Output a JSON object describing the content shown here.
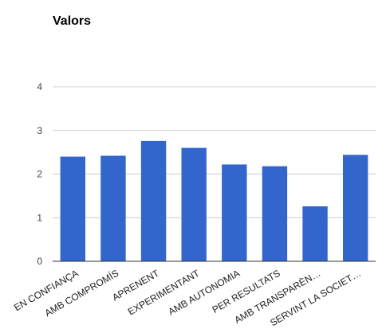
{
  "chart_data": {
    "type": "bar",
    "title": "Valors",
    "categories": [
      "EN CONFIANÇA",
      "AMB COMPROMÍS",
      "APRENENT",
      "EXPERIMENTANT",
      "AMB AUTONOMIA",
      "PER RESULTATS",
      "AMB TRANSPARÈN…",
      "SERVINT LA SOCIET…"
    ],
    "values": [
      2.4,
      2.42,
      2.76,
      2.6,
      2.22,
      2.18,
      1.26,
      2.44
    ],
    "ylim": [
      0,
      4
    ],
    "yticks": [
      "0",
      "1",
      "2",
      "3",
      "4"
    ],
    "xlabel": "",
    "ylabel": "",
    "grid": true,
    "legend": "none",
    "bar_color": "#3366cc",
    "grid_color": "#cccccc",
    "axis_color": "#333333"
  }
}
